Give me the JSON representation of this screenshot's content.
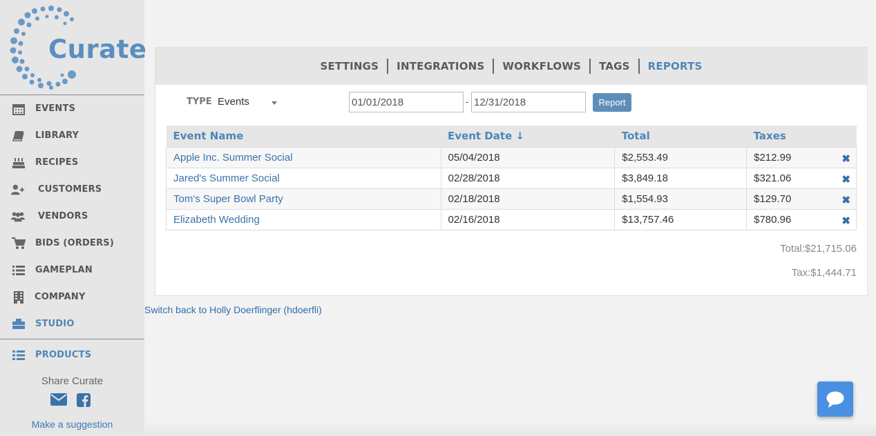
{
  "brand": {
    "name": "Curate",
    "color": "#5b8ec0"
  },
  "sidebar": {
    "items": [
      {
        "label": "EVENTS",
        "icon": "calendar-icon"
      },
      {
        "label": "LIBRARY",
        "icon": "book-icon"
      },
      {
        "label": "RECIPES",
        "icon": "cake-icon"
      },
      {
        "label": "CUSTOMERS",
        "icon": "user-plus-icon"
      },
      {
        "label": "VENDORS",
        "icon": "users-icon"
      },
      {
        "label": "BIDS (ORDERS)",
        "icon": "cart-icon"
      },
      {
        "label": "GAMEPLAN",
        "icon": "list-icon"
      },
      {
        "label": "COMPANY",
        "icon": "building-icon"
      },
      {
        "label": "STUDIO",
        "icon": "briefcase-icon",
        "active": true
      }
    ],
    "products": {
      "label": "PRODUCTS",
      "icon": "th-list-icon"
    },
    "share_title": "Share Curate",
    "suggestion_link": "Make a suggestion"
  },
  "tabs": [
    {
      "label": "SETTINGS"
    },
    {
      "label": "INTEGRATIONS"
    },
    {
      "label": "WORKFLOWS"
    },
    {
      "label": "TAGS"
    },
    {
      "label": "REPORTS",
      "active": true
    }
  ],
  "filters": {
    "type_label": "TYPE",
    "type_value": "Events",
    "start_date": "01/01/2018",
    "end_date": "12/31/2018",
    "dash": "-",
    "report_button": "Report"
  },
  "table": {
    "columns": [
      "Event Name",
      "Event Date ↓",
      "Total",
      "Taxes"
    ],
    "rows": [
      {
        "name": "Apple Inc. Summer Social",
        "date": "05/04/2018",
        "total": "$2,553.49",
        "tax": "$212.99"
      },
      {
        "name": "Jared's Summer Social",
        "date": "02/28/2018",
        "total": "$3,849.18",
        "tax": "$321.06"
      },
      {
        "name": "Tom's Super Bowl Party",
        "date": "02/18/2018",
        "total": "$1,554.93",
        "tax": "$129.70"
      },
      {
        "name": "Elizabeth Wedding",
        "date": "02/16/2018",
        "total": "$13,757.46",
        "tax": "$780.96"
      }
    ]
  },
  "summary": {
    "total": "Total:$21,715.06",
    "tax": "Tax:$1,444.71"
  },
  "switch_back": "Switch back to Holly Doerflinger (hdoerfli)",
  "colors": {
    "accent": "#4f86b7",
    "link": "#3a73a8",
    "chat": "#4a90e2"
  }
}
